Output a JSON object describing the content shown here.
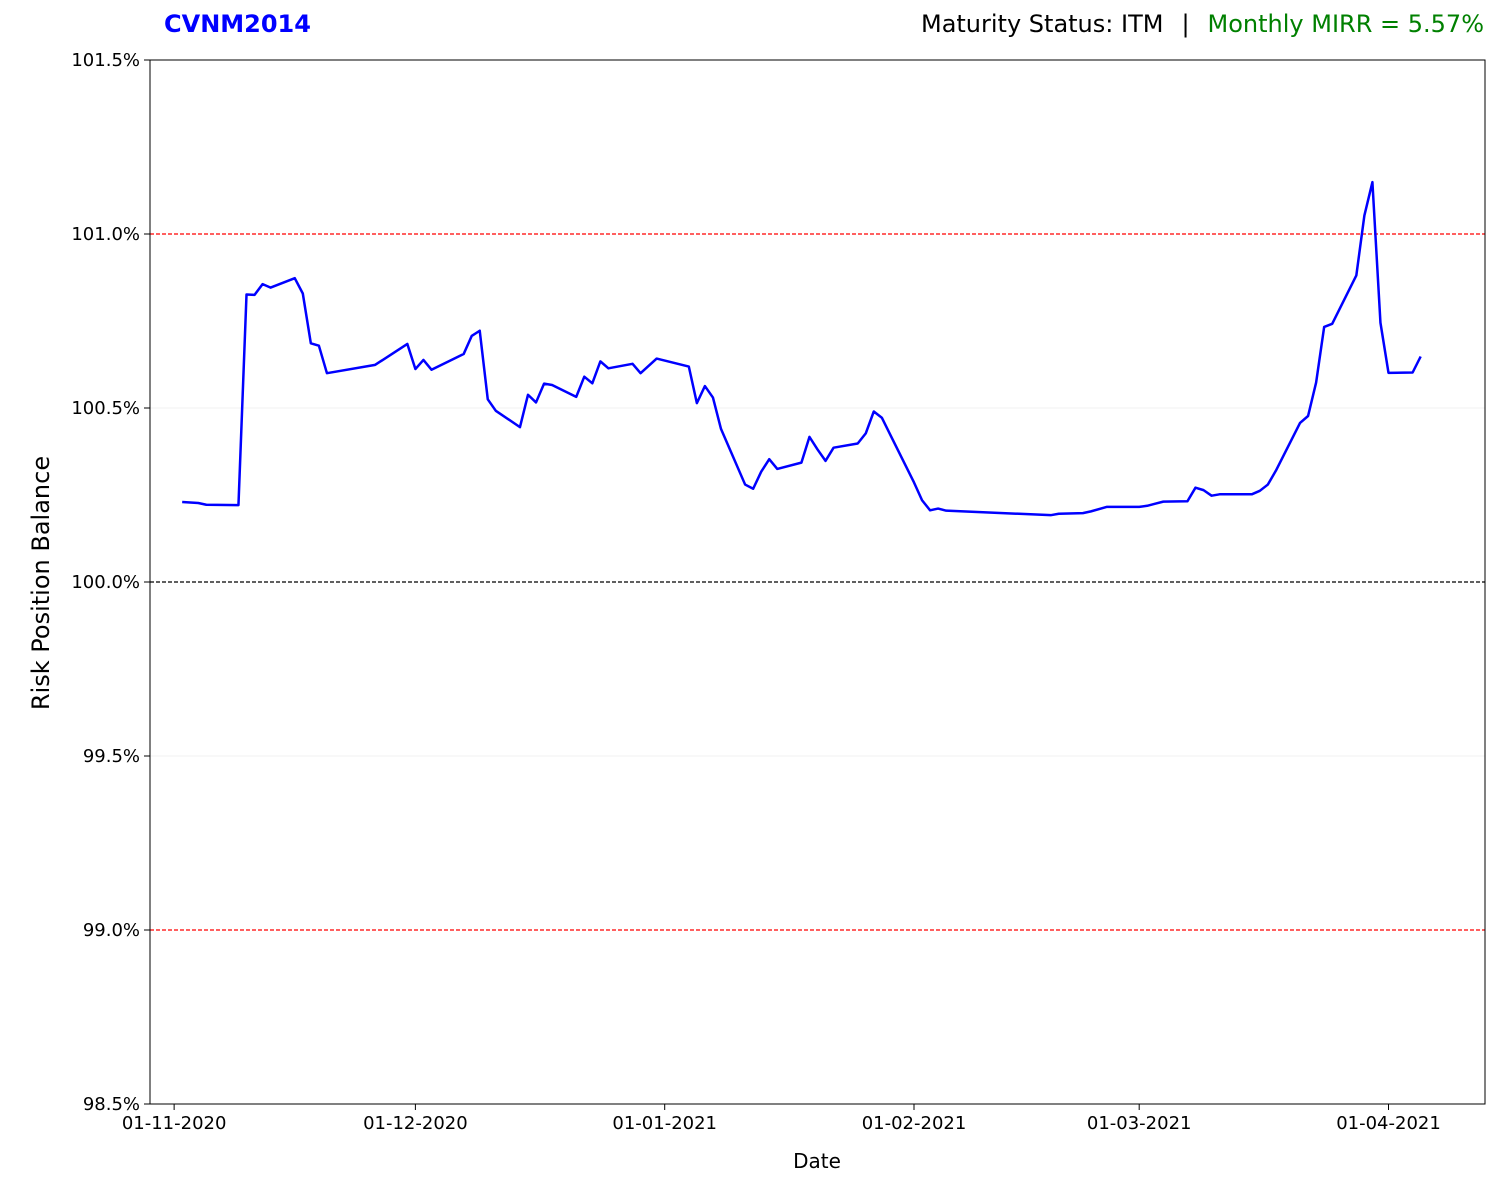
{
  "header": {
    "ticker": "CVNM2014",
    "status_label": "Maturity Status: ITM",
    "separator": "|",
    "mirr_label": "Monthly MIRR = 5.57%"
  },
  "colors": {
    "series": "#0000ff",
    "ticker": "#0000ff",
    "mirr": "#008000",
    "threshold": "#ff0000",
    "baseline": "#000000"
  },
  "chart_data": {
    "type": "line",
    "title": "",
    "xlabel": "Date",
    "ylabel": "Risk Position Balance",
    "grid": false,
    "ylim": [
      98.5,
      101.5
    ],
    "xlim": [
      "2020-10-29",
      "2021-04-13"
    ],
    "y_ticks": [
      "98.5%",
      "99.0%",
      "99.5%",
      "100.0%",
      "100.5%",
      "101.0%",
      "101.5%"
    ],
    "y_tick_values": [
      98.5,
      99.0,
      99.5,
      100.0,
      100.5,
      101.0,
      101.5
    ],
    "x_ticks": [
      "01-11-2020",
      "01-12-2020",
      "01-01-2021",
      "01-02-2021",
      "01-03-2021",
      "01-04-2021"
    ],
    "x_tick_dates": [
      "2020-11-01",
      "2020-12-01",
      "2021-01-01",
      "2021-02-01",
      "2021-03-01",
      "2021-04-01"
    ],
    "reference_lines": [
      {
        "y": 101.0,
        "color": "#ff0000",
        "style": "dashed"
      },
      {
        "y": 100.0,
        "color": "#000000",
        "style": "dashed"
      },
      {
        "y": 99.0,
        "color": "#ff0000",
        "style": "dashed"
      }
    ],
    "series": [
      {
        "x": [
          "2020-11-02",
          "2020-11-04",
          "2020-11-05",
          "2020-11-09",
          "2020-11-10",
          "2020-11-11",
          "2020-11-12",
          "2020-11-13",
          "2020-11-16",
          "2020-11-17",
          "2020-11-18",
          "2020-11-19",
          "2020-11-20",
          "2020-11-26",
          "2020-11-30",
          "2020-12-01",
          "2020-12-02",
          "2020-12-03",
          "2020-12-07",
          "2020-12-08",
          "2020-12-09",
          "2020-12-10",
          "2020-12-11",
          "2020-12-14",
          "2020-12-15",
          "2020-12-16",
          "2020-12-17",
          "2020-12-18",
          "2020-12-21",
          "2020-12-22",
          "2020-12-23",
          "2020-12-24",
          "2020-12-25",
          "2020-12-28",
          "2020-12-29",
          "2020-12-31",
          "2021-01-04",
          "2021-01-05",
          "2021-01-06",
          "2021-01-07",
          "2021-01-08",
          "2021-01-11",
          "2021-01-12",
          "2021-01-13",
          "2021-01-14",
          "2021-01-15",
          "2021-01-18",
          "2021-01-19",
          "2021-01-20",
          "2021-01-21",
          "2021-01-22",
          "2021-01-25",
          "2021-01-26",
          "2021-01-27",
          "2021-01-28",
          "2021-02-01",
          "2021-02-02",
          "2021-02-03",
          "2021-02-04",
          "2021-02-05",
          "2021-02-18",
          "2021-02-19",
          "2021-02-22",
          "2021-02-23",
          "2021-02-25",
          "2021-03-01",
          "2021-03-02",
          "2021-03-03",
          "2021-03-04",
          "2021-03-07",
          "2021-03-08",
          "2021-03-09",
          "2021-03-10",
          "2021-03-11",
          "2021-03-15",
          "2021-03-16",
          "2021-03-17",
          "2021-03-18",
          "2021-03-21",
          "2021-03-22",
          "2021-03-23",
          "2021-03-24",
          "2021-03-25",
          "2021-03-28",
          "2021-03-29",
          "2021-03-30",
          "2021-03-31",
          "2021-04-01",
          "2021-04-04",
          "2021-04-05"
        ],
        "y": [
          100.23,
          100.227,
          100.222,
          100.221,
          100.826,
          100.825,
          100.856,
          100.846,
          100.873,
          100.829,
          100.686,
          100.679,
          100.6,
          100.624,
          100.684,
          100.612,
          100.638,
          100.61,
          100.655,
          100.707,
          100.722,
          100.525,
          100.492,
          100.445,
          100.538,
          100.516,
          100.57,
          100.566,
          100.532,
          100.59,
          100.571,
          100.634,
          100.614,
          100.627,
          100.6,
          100.642,
          100.619,
          100.514,
          100.563,
          100.53,
          100.44,
          100.28,
          100.268,
          100.317,
          100.353,
          100.325,
          100.343,
          100.417,
          100.381,
          100.348,
          100.386,
          100.398,
          100.427,
          100.49,
          100.472,
          100.286,
          100.235,
          100.206,
          100.211,
          100.205,
          100.192,
          100.196,
          100.198,
          100.203,
          100.216,
          100.216,
          100.219,
          100.225,
          100.231,
          100.232,
          100.271,
          100.264,
          100.248,
          100.252,
          100.252,
          100.262,
          100.28,
          100.32,
          100.457,
          100.477,
          100.573,
          100.733,
          100.742,
          100.881,
          101.053,
          101.149,
          100.745,
          100.601,
          100.602,
          100.648
        ]
      }
    ]
  }
}
